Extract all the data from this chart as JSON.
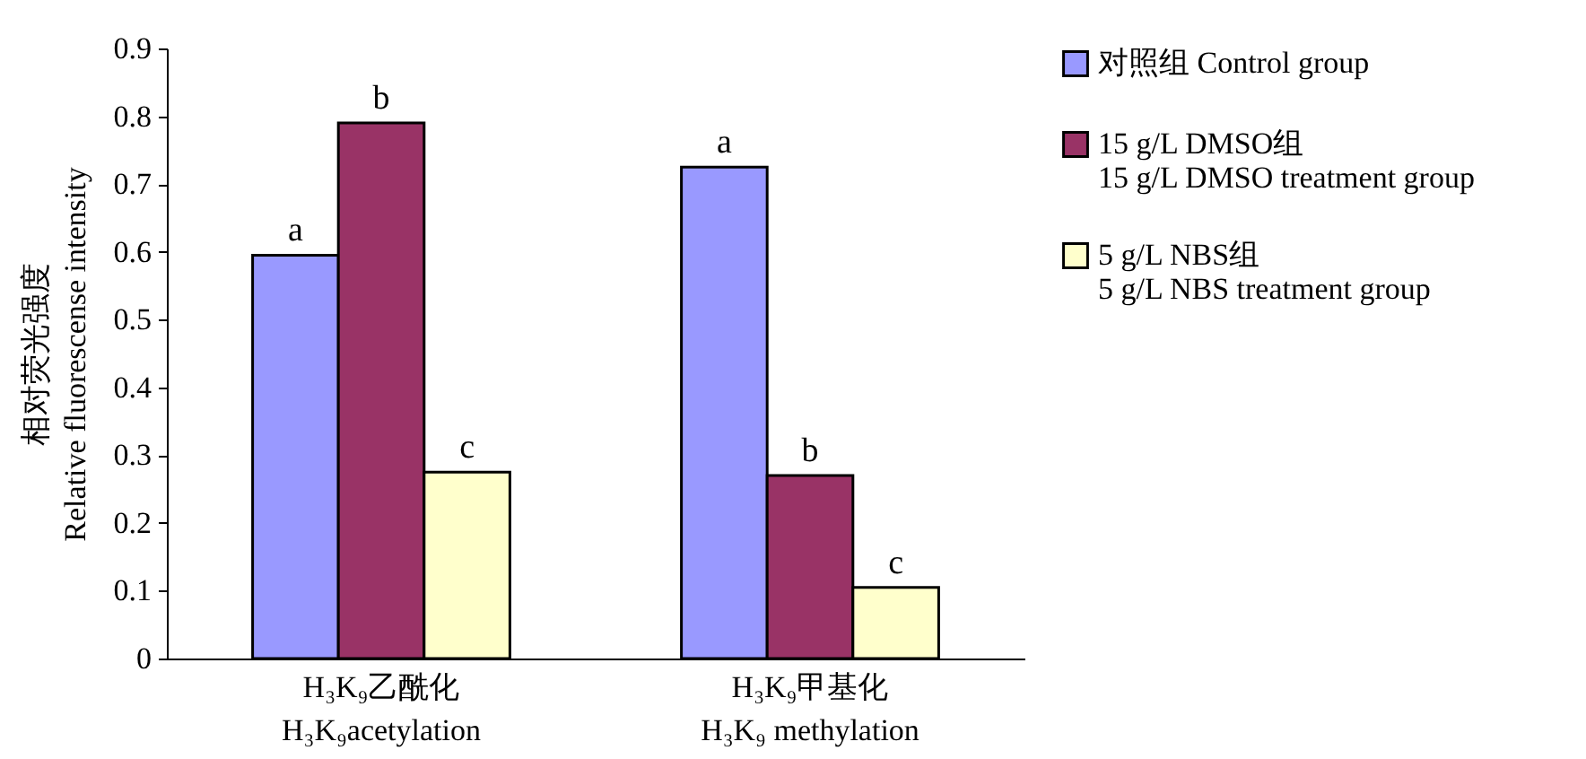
{
  "chart_data": {
    "type": "bar",
    "ylabel": "相对荧光强度\nRelative fluorescense intensity",
    "categories": [
      "H₃K₉乙酰化\nH₃K₉acetylation",
      "H₃K₉甲基化\nH₃K₉ methylation"
    ],
    "series": [
      {
        "name": "对照组  Control group",
        "color": "#9999ff",
        "values": [
          0.595,
          0.725
        ]
      },
      {
        "name": "15 g/L DMSO组\n15 g/L DMSO treatment group",
        "color": "#993366",
        "values": [
          0.79,
          0.27
        ]
      },
      {
        "name": "5 g/L NBS组\n5 g/L NBS treatment group",
        "color": "#ffffcc",
        "values": [
          0.275,
          0.105
        ]
      }
    ],
    "ylim": [
      0,
      0.9
    ],
    "yticks": [
      0,
      0.1,
      0.2,
      0.3,
      0.4,
      0.5,
      0.6,
      0.7,
      0.8,
      0.9
    ],
    "grid": false,
    "legend": "right",
    "annotations": [
      "a",
      "a",
      "b",
      "b",
      "c",
      "c"
    ]
  }
}
